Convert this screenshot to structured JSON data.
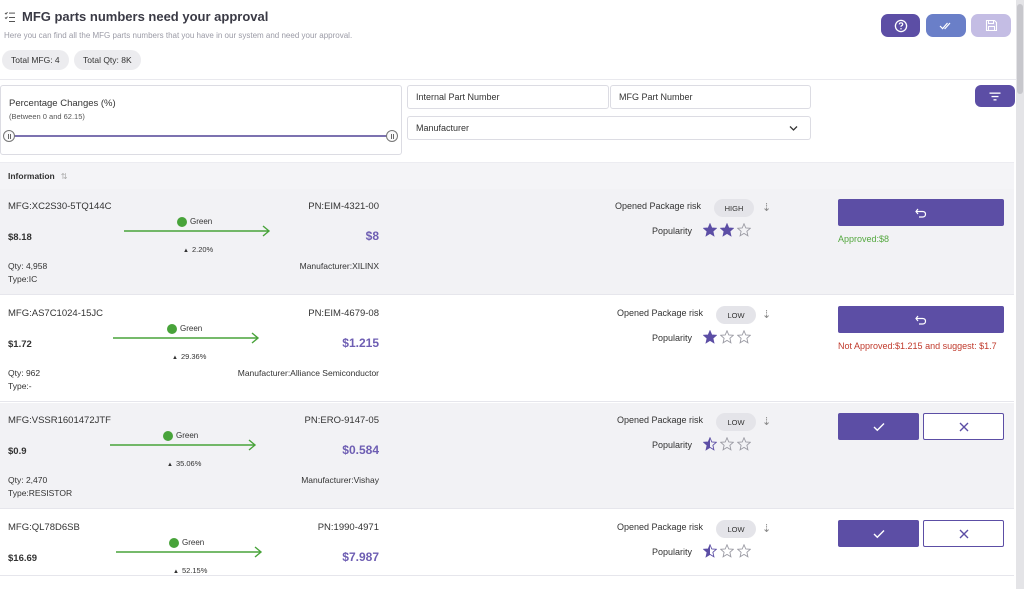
{
  "header": {
    "title": "MFG parts numbers need your approval",
    "subtitle": "Here you can find all the MFG parts numbers that you have in our system and need your approval.",
    "total_mfg": "Total MFG: 4",
    "total_qty": "Total Qty: 8K",
    "buttons": {
      "help": {
        "icon": "question-circle-icon",
        "color": "#5c4ea5"
      },
      "approve_all": {
        "icon": "double-check-icon",
        "color": "#6a7fc8"
      },
      "save": {
        "icon": "save-icon",
        "color": "#c4bde4"
      }
    }
  },
  "filters": {
    "percentage_title": "Percentage Changes (%)",
    "percentage_range": "(Between 0 and 62.15)",
    "internal_part_placeholder": "Internal Part Number",
    "mfg_part_placeholder": "MFG Part Number",
    "manufacturer_placeholder": "Manufacturer",
    "filter_icon": "filter-icon"
  },
  "table": {
    "header_label": "Information",
    "rows": [
      {
        "mfg": "MFG:XC2S30-5TQ144C",
        "price": "$8.18",
        "qty": "Qty: 4,958",
        "type": "Type:IC",
        "pn": "PN:EIM-4321-00",
        "new_price": "$8",
        "manufacturer": "Manufacturer:XILINX",
        "trend_label": "Green",
        "pct": "2.20%",
        "risk_label": "Opened Package risk",
        "risk": "HIGH",
        "popularity_label": "Popularity",
        "popularity": 2,
        "action": "revert",
        "status_type": "ok",
        "status": "Approved:$8"
      },
      {
        "mfg": "MFG:AS7C1024-15JC",
        "price": "$1.72",
        "qty": "Qty: 962",
        "type": "Type:-",
        "pn": "PN:EIM-4679-08",
        "new_price": "$1.215",
        "manufacturer": "Manufacturer:Alliance Semiconductor",
        "trend_label": "Green",
        "pct": "29.36%",
        "risk_label": "Opened Package risk",
        "risk": "LOW",
        "popularity_label": "Popularity",
        "popularity": 1,
        "action": "revert",
        "status_type": "bad",
        "status": "Not Approved:$1.215 and suggest: $1.7"
      },
      {
        "mfg": "MFG:VSSR1601472JTF",
        "price": "$0.9",
        "qty": "Qty: 2,470",
        "type": "Type:RESISTOR",
        "pn": "PN:ERO-9147-05",
        "new_price": "$0.584",
        "manufacturer": "Manufacturer:Vishay",
        "trend_label": "Green",
        "pct": "35.06%",
        "risk_label": "Opened Package risk",
        "risk": "LOW",
        "popularity_label": "Popularity",
        "popularity": 0.5,
        "action": "approve",
        "status_type": "",
        "status": ""
      },
      {
        "mfg": "MFG:QL78D6SB",
        "price": "$16.69",
        "qty": "",
        "type": "",
        "pn": "PN:1990-4971",
        "new_price": "$7.987",
        "manufacturer": "",
        "trend_label": "Green",
        "pct": "52.15%",
        "risk_label": "Opened Package risk",
        "risk": "LOW",
        "popularity_label": "Popularity",
        "popularity": 0.5,
        "action": "approve",
        "status_type": "",
        "status": ""
      }
    ]
  },
  "colors": {
    "accent": "#5c4ea5",
    "price_accent": "#6e5eb3",
    "trend_green": "#48a33a",
    "approved_text": "#54a83f",
    "rejected_text": "#c0392b"
  }
}
